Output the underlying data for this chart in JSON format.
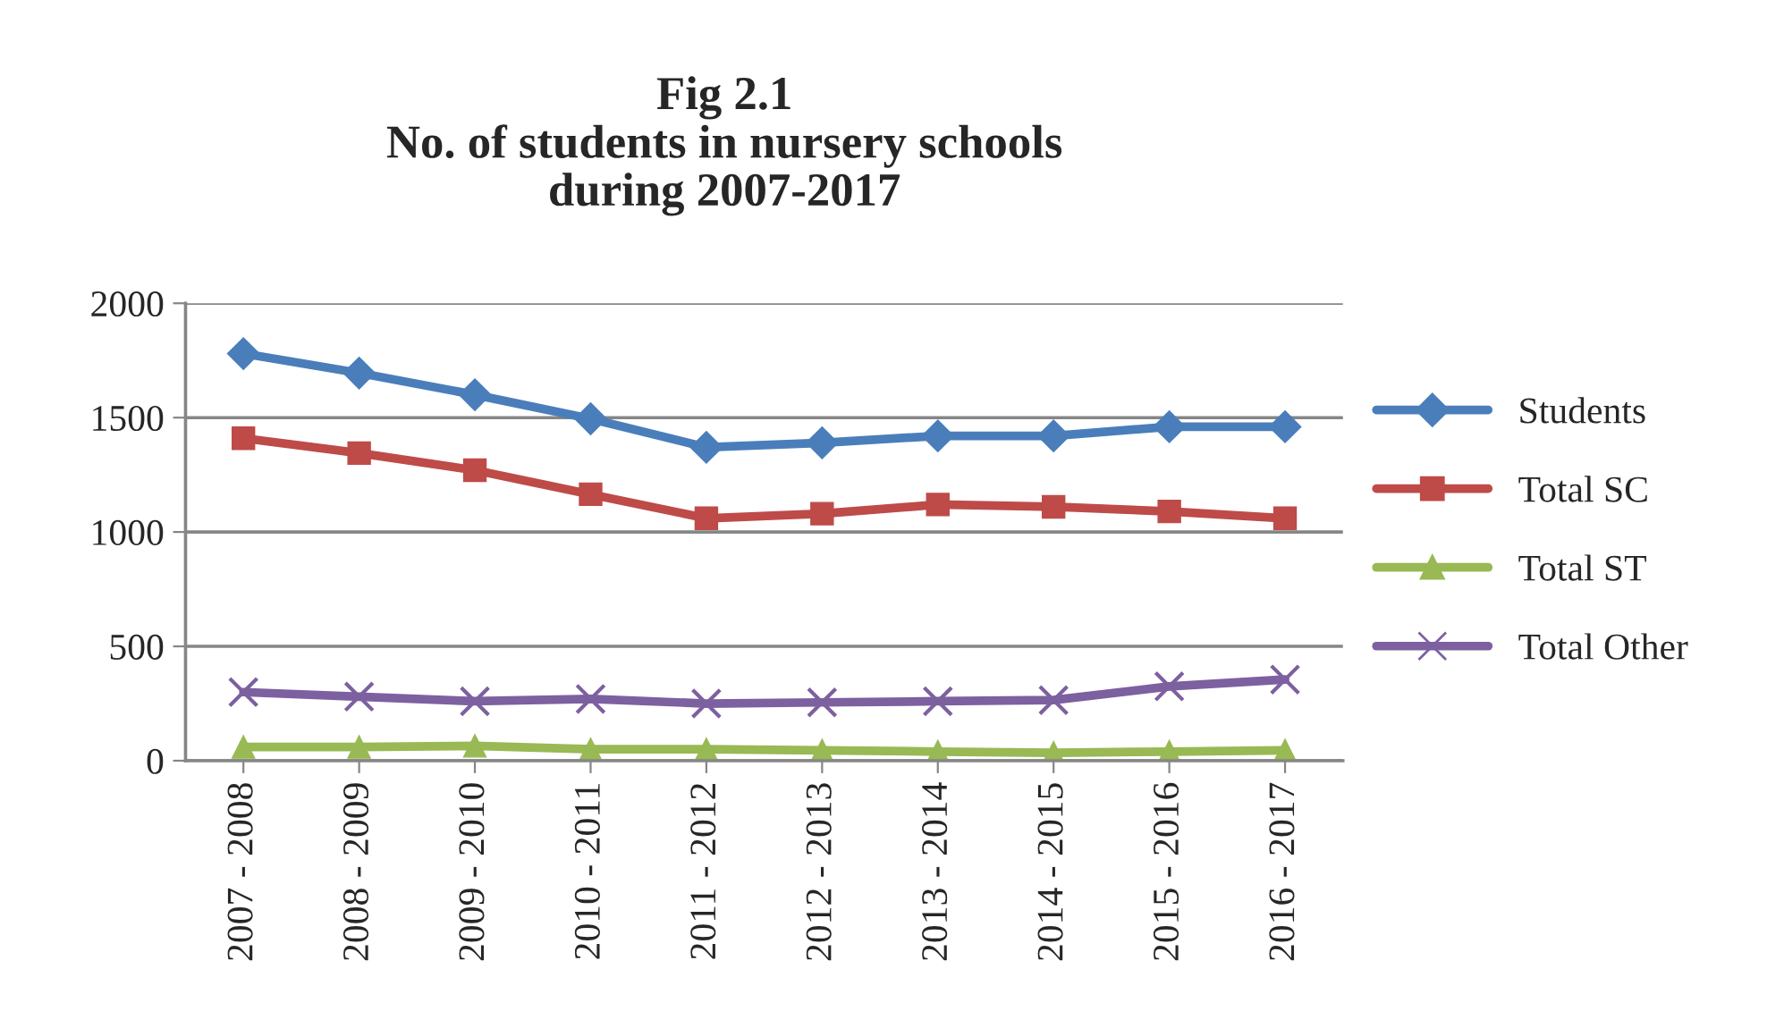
{
  "chart_data": {
    "type": "line",
    "title": "Fig 2.1\nNo. of students in nursery schools\nduring 2007-2017",
    "categories": [
      "2007 - 2008",
      "2008 - 2009",
      "2009 - 2010",
      "2010 - 2011",
      "2011 - 2012",
      "2012 - 2013",
      "2013 - 2014",
      "2014 - 2015",
      "2015 - 2016",
      "2016 - 2017"
    ],
    "series": [
      {
        "name": "Students",
        "color": "#4a7ebb",
        "marker": "diamond",
        "values": [
          1780,
          1695,
          1600,
          1495,
          1370,
          1390,
          1420,
          1420,
          1460,
          1460
        ]
      },
      {
        "name": "Total SC",
        "color": "#be4b48",
        "marker": "square",
        "values": [
          1410,
          1345,
          1270,
          1165,
          1060,
          1080,
          1120,
          1110,
          1090,
          1060
        ]
      },
      {
        "name": "Total ST",
        "color": "#98b954",
        "marker": "triangle",
        "values": [
          60,
          60,
          65,
          50,
          50,
          45,
          40,
          35,
          40,
          45
        ]
      },
      {
        "name": "Total Other",
        "color": "#7d60a0",
        "marker": "cross",
        "values": [
          300,
          280,
          260,
          270,
          250,
          255,
          260,
          265,
          325,
          355
        ]
      }
    ],
    "ylim": [
      0,
      2000
    ],
    "yticks": [
      0,
      500,
      1000,
      1500,
      2000
    ],
    "grid": "y",
    "legend": "right",
    "line_style": "solid"
  }
}
